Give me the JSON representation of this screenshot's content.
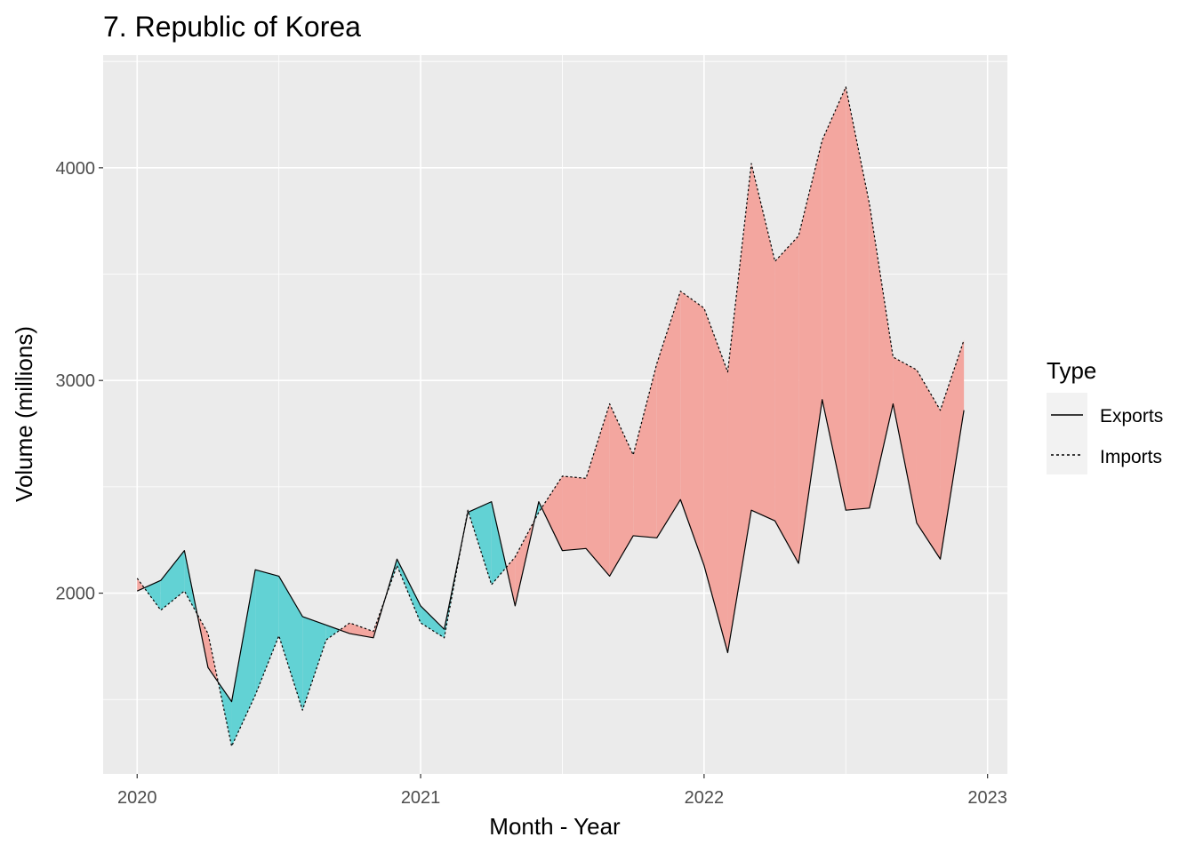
{
  "chart_data": {
    "type": "area",
    "title": "7. Republic of Korea",
    "xlabel": "Month - Year",
    "ylabel": "Volume (millions)",
    "x_ticks": [
      "2020",
      "2021",
      "2022",
      "2023"
    ],
    "y_ticks": [
      2000,
      3000,
      4000
    ],
    "xlim": [
      2019.88,
      2023.07
    ],
    "ylim": [
      1150,
      4530
    ],
    "grid": true,
    "legend": {
      "title": "Type",
      "position": "right",
      "entries": [
        "Exports",
        "Imports"
      ]
    },
    "fill_colors": {
      "exports_higher": "#5dd1d3",
      "imports_higher": "#f3a39c"
    },
    "x": [
      "2020-01",
      "2020-02",
      "2020-03",
      "2020-04",
      "2020-05",
      "2020-06",
      "2020-07",
      "2020-08",
      "2020-09",
      "2020-10",
      "2020-11",
      "2020-12",
      "2021-01",
      "2021-02",
      "2021-03",
      "2021-04",
      "2021-05",
      "2021-06",
      "2021-07",
      "2021-08",
      "2021-09",
      "2021-10",
      "2021-11",
      "2021-12",
      "2022-01",
      "2022-02",
      "2022-03",
      "2022-04",
      "2022-05",
      "2022-06",
      "2022-07",
      "2022-08",
      "2022-09",
      "2022-10",
      "2022-11",
      "2022-12"
    ],
    "series": [
      {
        "name": "Exports",
        "line": "solid",
        "values": [
          2010,
          2060,
          2200,
          1650,
          1490,
          2110,
          2080,
          1890,
          1850,
          1810,
          1790,
          2160,
          1940,
          1830,
          2380,
          2430,
          1940,
          2430,
          2200,
          2210,
          2080,
          2270,
          2260,
          2440,
          2130,
          1720,
          2390,
          2340,
          2140,
          2910,
          2390,
          2400,
          2890,
          2330,
          2160,
          2860
        ]
      },
      {
        "name": "Imports",
        "line": "dashed",
        "values": [
          2070,
          1920,
          2010,
          1810,
          1280,
          1520,
          1800,
          1450,
          1780,
          1860,
          1820,
          2130,
          1860,
          1790,
          2390,
          2040,
          2170,
          2380,
          2550,
          2540,
          2890,
          2650,
          3080,
          3420,
          3340,
          3040,
          4020,
          3560,
          3680,
          4130,
          4380,
          3830,
          3110,
          3050,
          2860,
          3190
        ]
      }
    ]
  }
}
